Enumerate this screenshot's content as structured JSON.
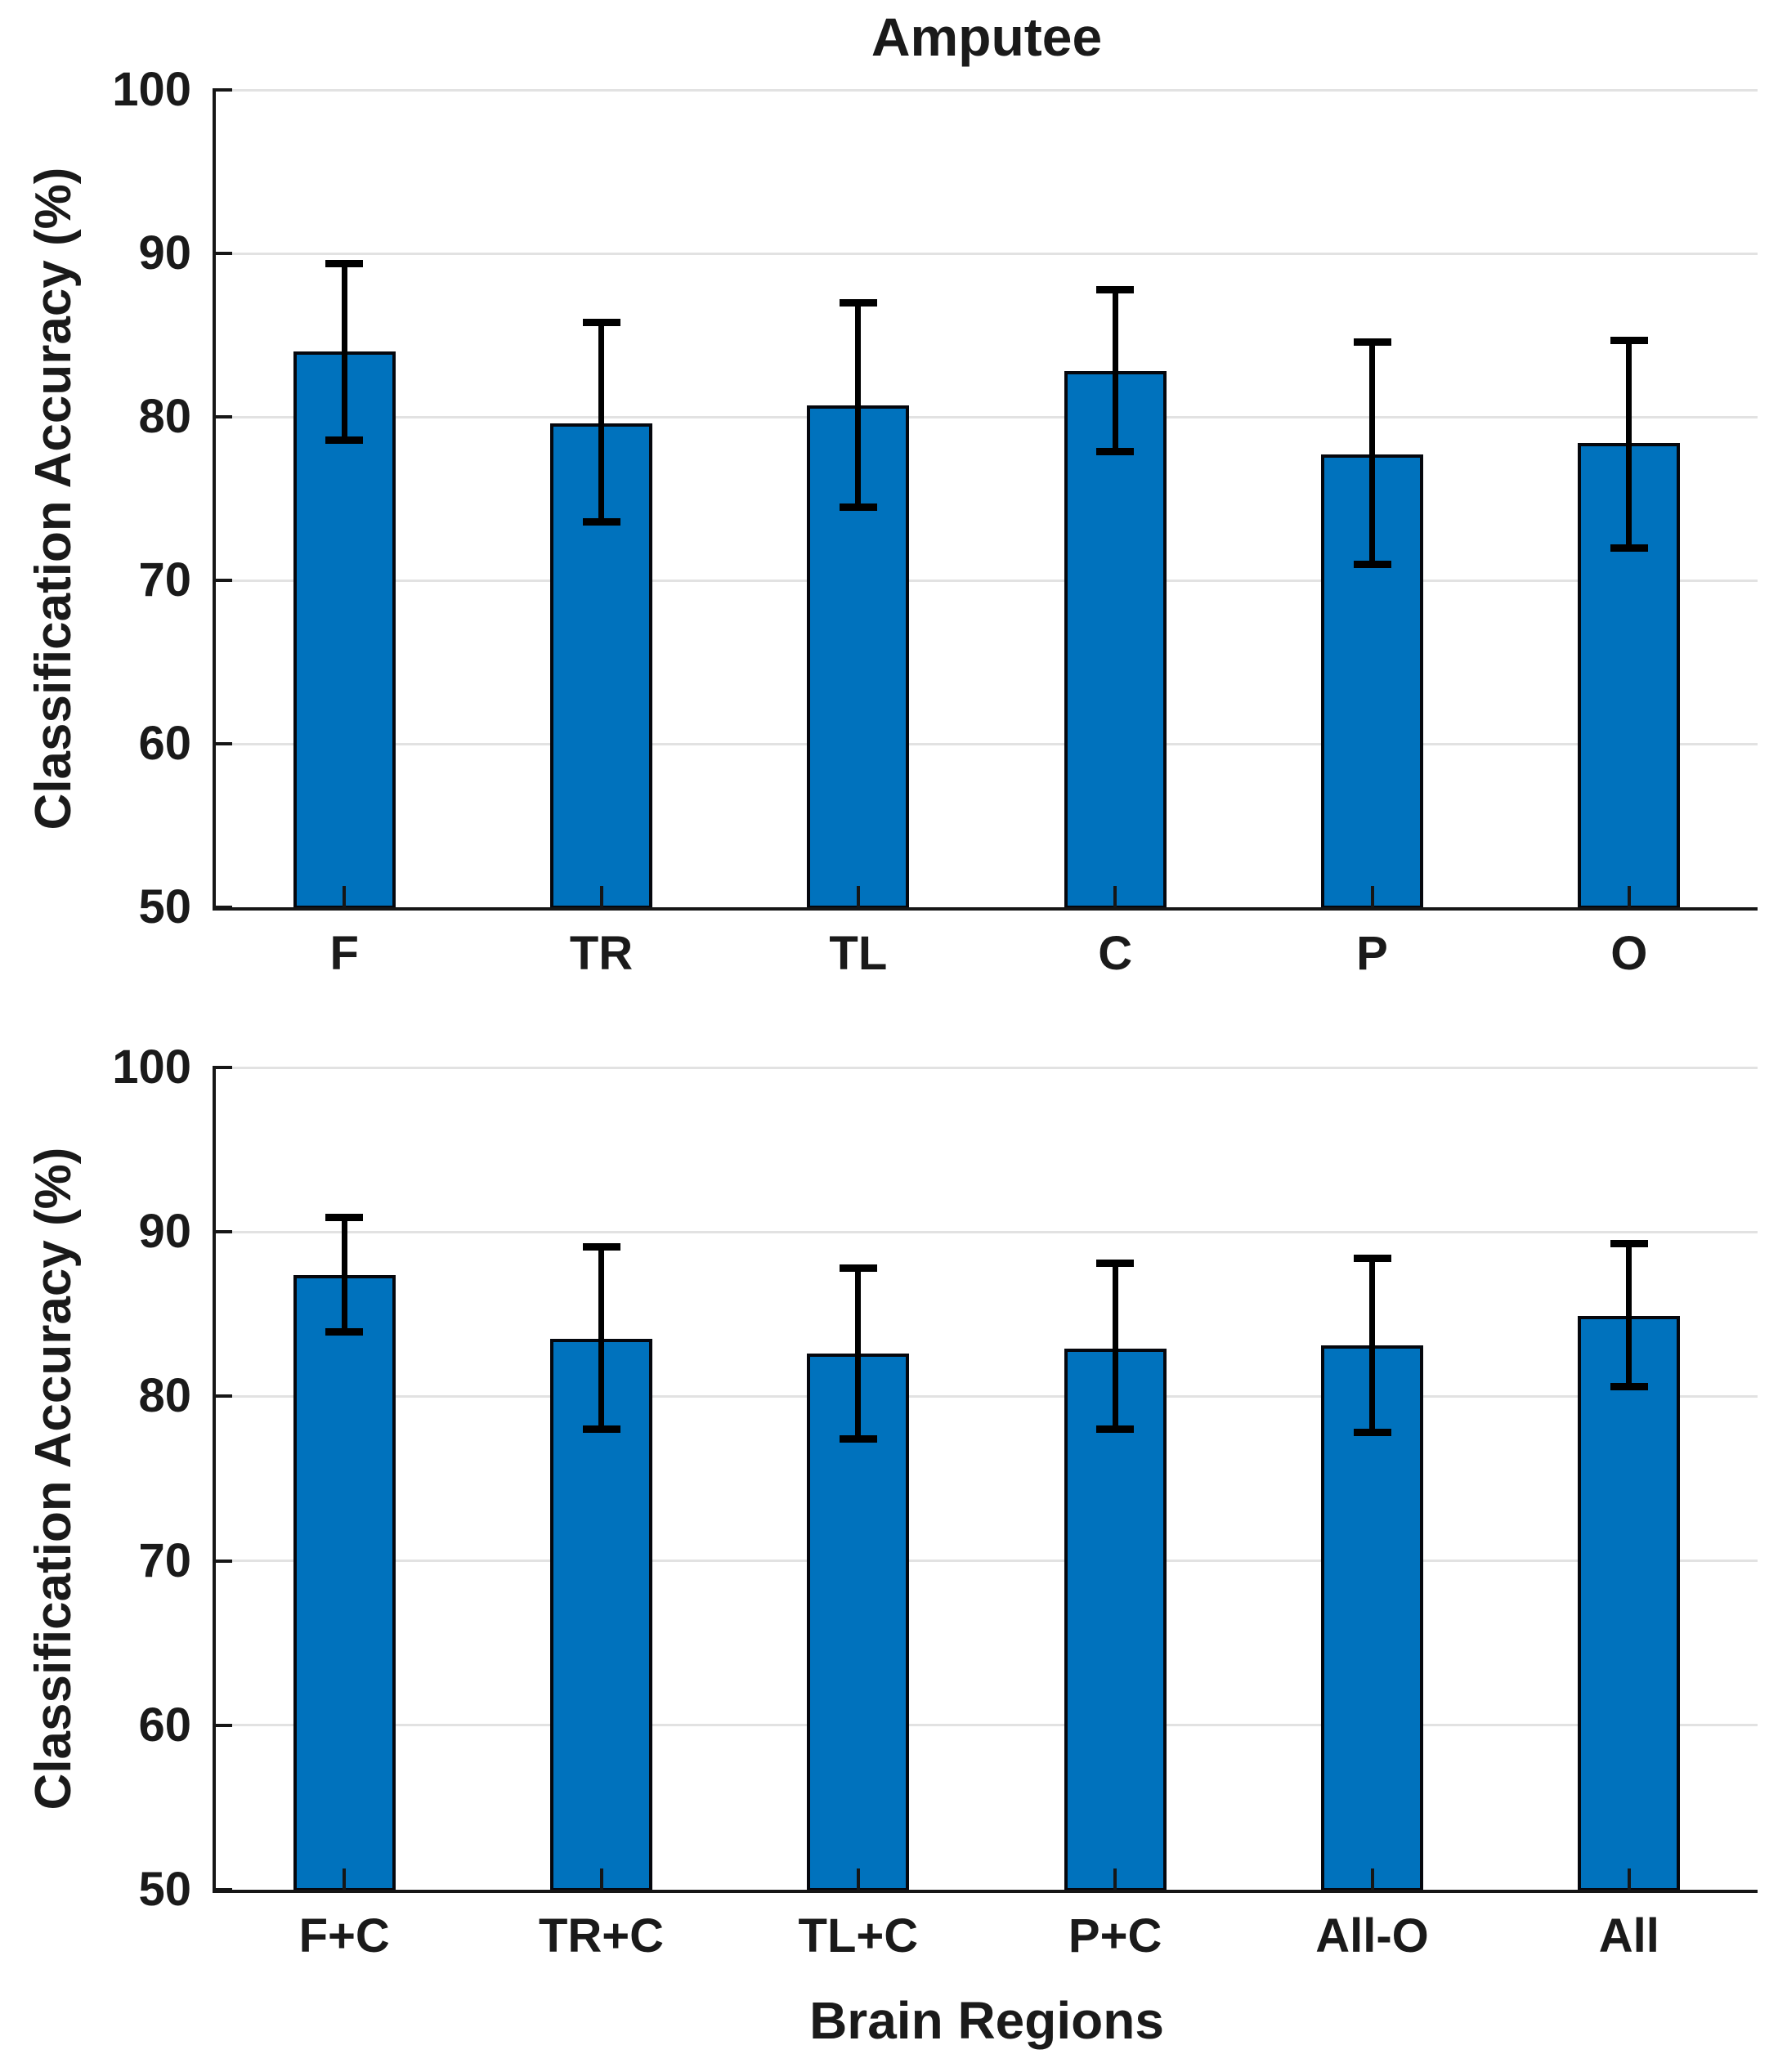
{
  "title": "Amputee",
  "colors": {
    "bar_fill": "#0072BD",
    "bar_edge": "#05070d",
    "error_bar": "#000000",
    "gridline": "#e2e2e2",
    "axis": "#161616",
    "text": "#1a1a1a",
    "background": "#ffffff"
  },
  "chart_data": [
    {
      "type": "bar",
      "panel": "top",
      "title": "Amputee",
      "ylabel": "Classification Accuracy (%)",
      "xlabel": "",
      "categories": [
        "F",
        "TR",
        "TL",
        "C",
        "P",
        "O"
      ],
      "values": [
        84.0,
        79.6,
        80.7,
        82.8,
        77.7,
        78.4
      ],
      "error_low": [
        78.6,
        73.6,
        74.5,
        77.9,
        71.0,
        72.0
      ],
      "error_high": [
        89.4,
        85.8,
        87.0,
        87.8,
        84.6,
        84.7
      ],
      "ylim": [
        50,
        100
      ],
      "yticks": [
        50,
        60,
        70,
        80,
        90,
        100
      ],
      "grid": true,
      "legend": null
    },
    {
      "type": "bar",
      "panel": "bottom",
      "title": "",
      "ylabel": "Classification Accuracy (%)",
      "xlabel": "Brain Regions",
      "categories": [
        "F+C",
        "TR+C",
        "TL+C",
        "P+C",
        "All-O",
        "All"
      ],
      "values": [
        87.4,
        83.5,
        82.6,
        82.9,
        83.1,
        84.9
      ],
      "error_low": [
        83.9,
        78.0,
        77.4,
        78.0,
        77.8,
        80.6
      ],
      "error_high": [
        90.9,
        89.1,
        87.8,
        88.1,
        88.4,
        89.3
      ],
      "ylim": [
        50,
        100
      ],
      "yticks": [
        50,
        60,
        70,
        80,
        90,
        100
      ],
      "grid": true,
      "legend": null
    }
  ]
}
